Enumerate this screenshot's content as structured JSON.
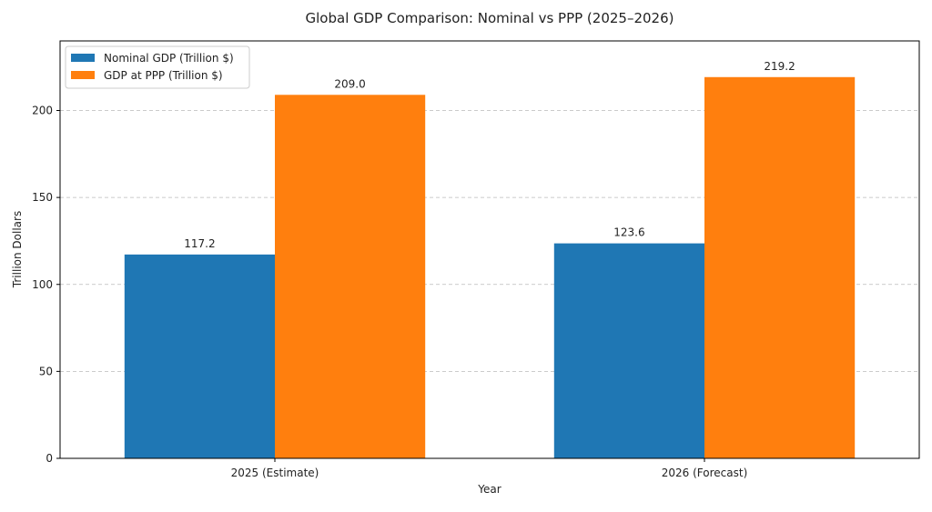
{
  "chart_data": {
    "type": "bar",
    "title": "Global GDP Comparison: Nominal vs PPP (2025–2026)",
    "xlabel": "Year",
    "ylabel": "Trillion Dollars",
    "categories": [
      "2025 (Estimate)",
      "2026 (Forecast)"
    ],
    "series": [
      {
        "name": "Nominal GDP (Trillion $)",
        "values": [
          117.2,
          123.6
        ],
        "value_labels": [
          "117.2",
          "123.6"
        ],
        "color": "#1f77b4"
      },
      {
        "name": "GDP at PPP (Trillion $)",
        "values": [
          209.0,
          219.2
        ],
        "value_labels": [
          "209.0",
          "219.2"
        ],
        "color": "#ff7f0e"
      }
    ],
    "ylim": [
      0,
      240
    ],
    "yticks": [
      0,
      50,
      100,
      150,
      200
    ],
    "ytick_labels": [
      "0",
      "50",
      "100",
      "150",
      "200"
    ],
    "grid": "y-dashed",
    "legend_position": "upper-left"
  }
}
